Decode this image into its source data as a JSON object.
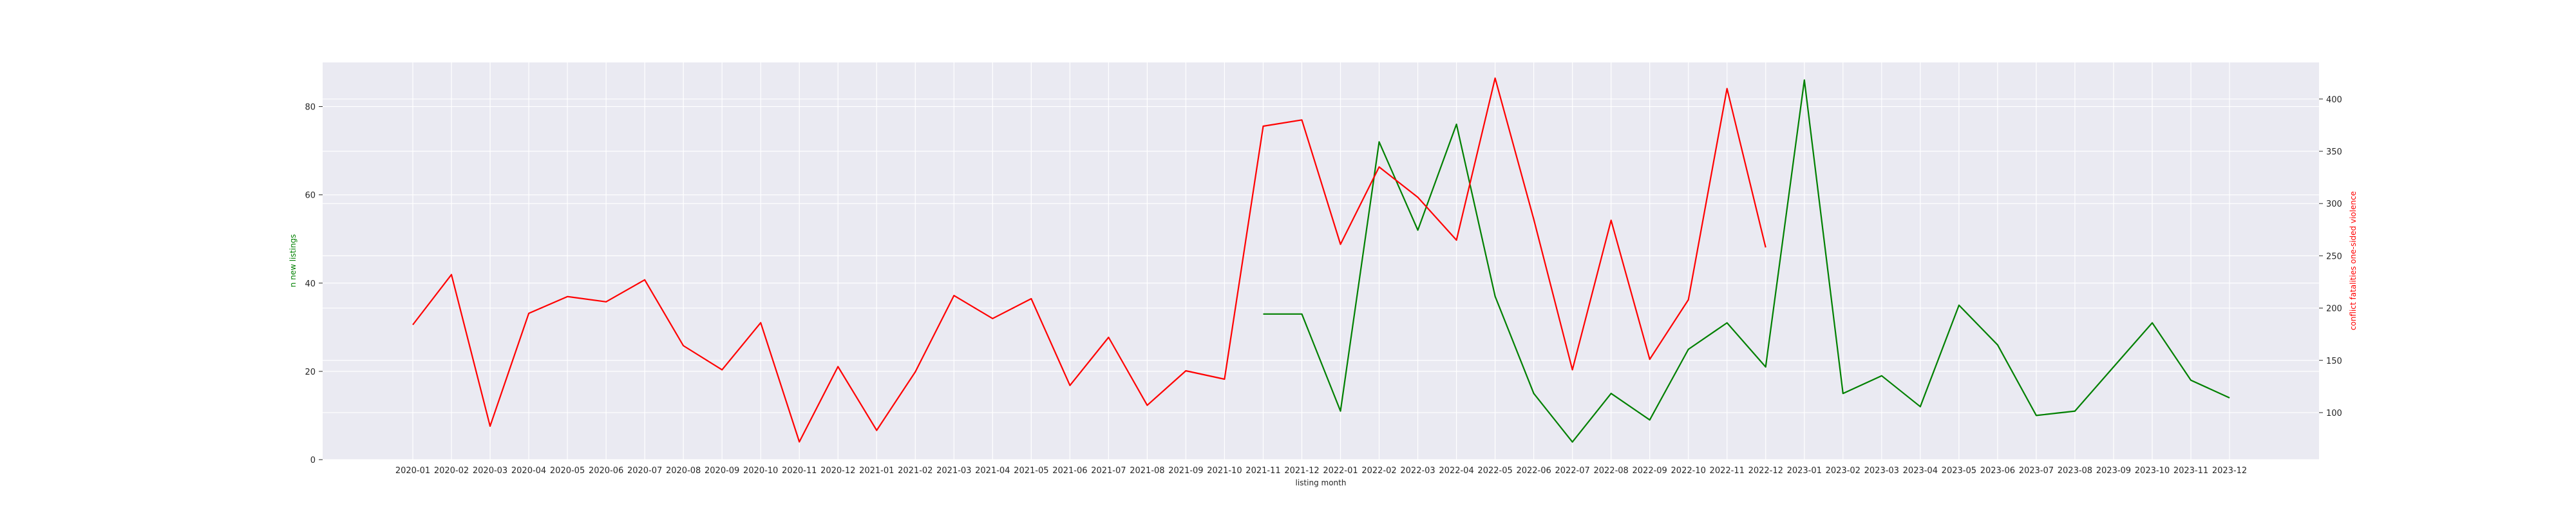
{
  "chart_data": {
    "type": "line",
    "xlabel": "listing month",
    "ylabel_left": "n new listings",
    "ylabel_right": "conflict fatalities one-sided violence",
    "grid": true,
    "categories": [
      "2020-01",
      "2020-02",
      "2020-03",
      "2020-04",
      "2020-05",
      "2020-06",
      "2020-07",
      "2020-08",
      "2020-09",
      "2020-10",
      "2020-11",
      "2020-12",
      "2021-01",
      "2021-02",
      "2021-03",
      "2021-04",
      "2021-05",
      "2021-06",
      "2021-07",
      "2021-08",
      "2021-09",
      "2021-10",
      "2021-11",
      "2021-12",
      "2022-01",
      "2022-02",
      "2022-03",
      "2022-04",
      "2022-05",
      "2022-06",
      "2022-07",
      "2022-08",
      "2022-09",
      "2022-10",
      "2022-11",
      "2022-12",
      "2023-01",
      "2023-02",
      "2023-03",
      "2023-04",
      "2023-05",
      "2023-06",
      "2023-07",
      "2023-08",
      "2023-09",
      "2023-10",
      "2023-11",
      "2023-12"
    ],
    "y_left_ticks": [
      0,
      20,
      40,
      60,
      80
    ],
    "y_left_lim": [
      0,
      90
    ],
    "y_right_ticks": [
      100,
      150,
      200,
      250,
      300,
      350,
      400
    ],
    "y_right_lim": [
      55,
      435
    ],
    "series": [
      {
        "axis": "left",
        "color": "#008000",
        "values": [
          null,
          null,
          null,
          null,
          null,
          null,
          null,
          null,
          null,
          null,
          null,
          null,
          null,
          null,
          null,
          null,
          null,
          null,
          null,
          null,
          null,
          null,
          33,
          33,
          11,
          72,
          52,
          76,
          37,
          15,
          4,
          15,
          9,
          25,
          31,
          21,
          86,
          15,
          19,
          12,
          35,
          26,
          10,
          11,
          21,
          31,
          18,
          14
        ]
      },
      {
        "axis": "right",
        "color": "#ff0000",
        "values": [
          184,
          232,
          87,
          195,
          211,
          206,
          227,
          164,
          141,
          186,
          72,
          144,
          83,
          139,
          212,
          190,
          209,
          126,
          172,
          107,
          140,
          132,
          374,
          380,
          261,
          335,
          306,
          265,
          420,
          285,
          141,
          284,
          151,
          208,
          410,
          258,
          null,
          null,
          null,
          null,
          null,
          null,
          null,
          null,
          null,
          null,
          null,
          null
        ]
      }
    ]
  }
}
